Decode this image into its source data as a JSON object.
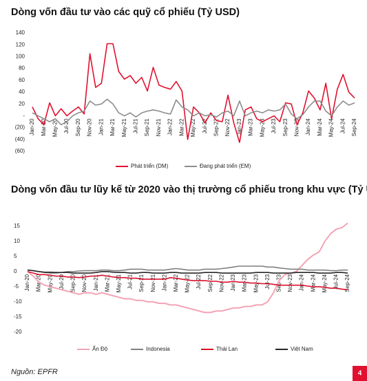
{
  "chart_data": [
    {
      "type": "line",
      "title": "Dòng vốn đầu tư vào các quỹ cổ phiếu (Tỷ USD)",
      "categories": [
        "Jan-20",
        null,
        "Mar-20",
        null,
        "May-20",
        null,
        "Jul-20",
        null,
        "Sep-20",
        null,
        "Nov-20",
        null,
        "Jan-21",
        null,
        "Mar-21",
        null,
        "May-21",
        null,
        "Jul-21",
        null,
        "Sep-21",
        null,
        "Nov-21",
        null,
        "Jan-22",
        null,
        "Mar-22",
        null,
        "May-22",
        null,
        "Jul-22",
        null,
        "Sep-22",
        null,
        "Nov-22",
        null,
        "Jan-23",
        null,
        "Mar-23",
        null,
        "May-23",
        null,
        "Jul-23",
        null,
        "Sep-23",
        null,
        "Nov-23",
        null,
        "Jan-24",
        null,
        "Mar-24",
        null,
        "May-24",
        null,
        "Jul-24",
        null,
        "Sep-24"
      ],
      "series": [
        {
          "name": "Phát triển (DM)",
          "color": "#e0102e",
          "values": [
            15,
            -5,
            -15,
            22,
            0,
            12,
            0,
            8,
            15,
            3,
            105,
            48,
            55,
            122,
            122,
            75,
            62,
            68,
            55,
            65,
            42,
            82,
            52,
            48,
            45,
            58,
            42,
            -40,
            15,
            5,
            -12,
            5,
            -8,
            -10,
            35,
            -12,
            -45,
            10,
            15,
            -5,
            -10,
            -5,
            0,
            -10,
            22,
            20,
            -15,
            5,
            42,
            30,
            10,
            55,
            -5,
            45,
            70,
            40,
            30
          ]
        },
        {
          "name": "Đang phát triển (EM)",
          "color": "#8c8c8c",
          "values": [
            5,
            0,
            -5,
            -10,
            -5,
            -15,
            -10,
            0,
            5,
            8,
            25,
            18,
            20,
            28,
            20,
            5,
            0,
            5,
            -2,
            5,
            8,
            10,
            8,
            5,
            3,
            27,
            15,
            10,
            0,
            5,
            0,
            2,
            -2,
            5,
            8,
            0,
            25,
            0,
            5,
            8,
            5,
            10,
            8,
            10,
            20,
            3,
            -5,
            2,
            15,
            25,
            25,
            8,
            0,
            15,
            25,
            18,
            22
          ]
        }
      ],
      "ylim": [
        -60,
        140
      ],
      "yticks": [
        {
          "value": -60,
          "label": "(60)"
        },
        {
          "value": -40,
          "label": "(40)"
        },
        {
          "value": -20,
          "label": "(20)"
        },
        {
          "value": 0,
          "label": "-"
        },
        20,
        40,
        60,
        80,
        100,
        120,
        140
      ],
      "legend": "bottom"
    },
    {
      "type": "line",
      "title": "Dòng vốn đầu tư lũy kế từ 2020 vào thị trường cổ phiếu trong khu vực (Tỷ USD)",
      "categories": [
        "Jan-20",
        null,
        "Mar-20",
        null,
        "May-20",
        null,
        "Jul-20",
        null,
        "Sep-20",
        null,
        "Nov-20",
        null,
        "Jan-21",
        null,
        "Mar-21",
        null,
        "May-21",
        null,
        "Jul-21",
        null,
        "Sep-21",
        null,
        "Nov-21",
        null,
        "Jan-22",
        null,
        "Mar-22",
        null,
        "May-22",
        null,
        "Jul-22",
        null,
        "Sep-22",
        null,
        "Nov-22",
        null,
        "Jan-23",
        null,
        "Mar-23",
        null,
        "May-23",
        null,
        "Jul-23",
        null,
        "Sep-23",
        null,
        "Nov-23",
        null,
        "Jan-24",
        null,
        "Mar-24",
        null,
        "May-24",
        null,
        "Jul-24",
        null,
        "Sep-24"
      ],
      "series": [
        {
          "name": "Ấn Độ",
          "color": "#f4a3b5",
          "values": [
            0,
            -1.5,
            -3.5,
            -4.5,
            -5,
            -5.5,
            -6,
            -6.5,
            -7,
            -7.5,
            -7,
            -7,
            -7.5,
            -7,
            -7.5,
            -8,
            -8.5,
            -9,
            -9,
            -9.5,
            -9.5,
            -10,
            -10,
            -10.5,
            -10.5,
            -11,
            -11,
            -11.5,
            -12,
            -12.5,
            -13,
            -13.5,
            -13.5,
            -13,
            -13,
            -12.5,
            -12,
            -12,
            -11.5,
            -11.5,
            -11,
            -11,
            -10,
            -7,
            -3,
            -1,
            -0.5,
            0,
            2,
            4,
            5.5,
            6.5,
            10,
            12.5,
            14,
            14.5,
            16
          ]
        },
        {
          "name": "Indonesia",
          "color": "#7f7f7f",
          "values": [
            0.5,
            0.3,
            0,
            -0.3,
            -0.5,
            -0.5,
            -0.3,
            0,
            0,
            0.2,
            0.3,
            0.3,
            0.3,
            0.5,
            0.5,
            0.3,
            0.3,
            0.5,
            0.8,
            0.8,
            0.8,
            0.5,
            0.5,
            0.5,
            0.5,
            0.8,
            1,
            0.8,
            0.5,
            0.5,
            0.5,
            0.8,
            0.8,
            0.8,
            1,
            1.2,
            1.5,
            1.8,
            1.8,
            1.8,
            1.8,
            1.8,
            1.5,
            1.5,
            1.2,
            1,
            0.8,
            0.8,
            0.8,
            0.5,
            0.5,
            0.5,
            0.5,
            0.3,
            0.3,
            0.5,
            0.5
          ]
        },
        {
          "name": "Thái Lan",
          "color": "#d8102b",
          "values": [
            0,
            -0.5,
            -1,
            -1,
            -1.2,
            -1.5,
            -1.5,
            -1.8,
            -1.8,
            -2,
            -1.8,
            -1.5,
            -1.5,
            -1.2,
            -1.5,
            -1.8,
            -2,
            -2,
            -2.2,
            -2.2,
            -2.5,
            -2.5,
            -2.5,
            -2.5,
            -2.5,
            -2,
            -2.2,
            -2.5,
            -2.8,
            -3,
            -3,
            -3,
            -3.2,
            -3.2,
            -3.5,
            -3.5,
            -3.2,
            -3.5,
            -3.5,
            -3.8,
            -3.8,
            -4,
            -4,
            -4.2,
            -4.5,
            -4.5,
            -4.5,
            -4.5,
            -4.5,
            -4.8,
            -5,
            -5,
            -5.2,
            -5.5,
            -5.5,
            -5.8,
            -6
          ]
        },
        {
          "name": "Việt Nam",
          "color": "#262626",
          "values": [
            0.5,
            0.3,
            0,
            -0.2,
            -0.2,
            -0.3,
            -0.3,
            -0.3,
            -0.5,
            -0.5,
            -0.5,
            -0.5,
            -0.3,
            0,
            0,
            -0.2,
            -0.3,
            -0.3,
            -0.5,
            -0.5,
            -0.3,
            -0.3,
            -0.5,
            -0.5,
            -0.5,
            -0.3,
            -0.3,
            -0.5,
            -0.5,
            -0.5,
            -0.5,
            -0.3,
            -0.3,
            -0.3,
            -0.5,
            -0.5,
            -0.5,
            -0.5,
            -0.5,
            -0.5,
            -0.3,
            -0.3,
            -0.3,
            -0.5,
            -0.5,
            -0.5,
            -0.5,
            -0.3,
            -0.3,
            -0.3,
            -0.3,
            -0.5,
            -0.5,
            -0.5,
            -0.3,
            -0.3,
            -0.5
          ]
        }
      ],
      "ylim": [
        -20,
        17
      ],
      "yticks": [
        -20,
        -15,
        -10,
        -5,
        0,
        5,
        10,
        15
      ],
      "legend": "bottom"
    }
  ],
  "footer": {
    "source": "Nguồn: EPFR",
    "page": "4"
  }
}
